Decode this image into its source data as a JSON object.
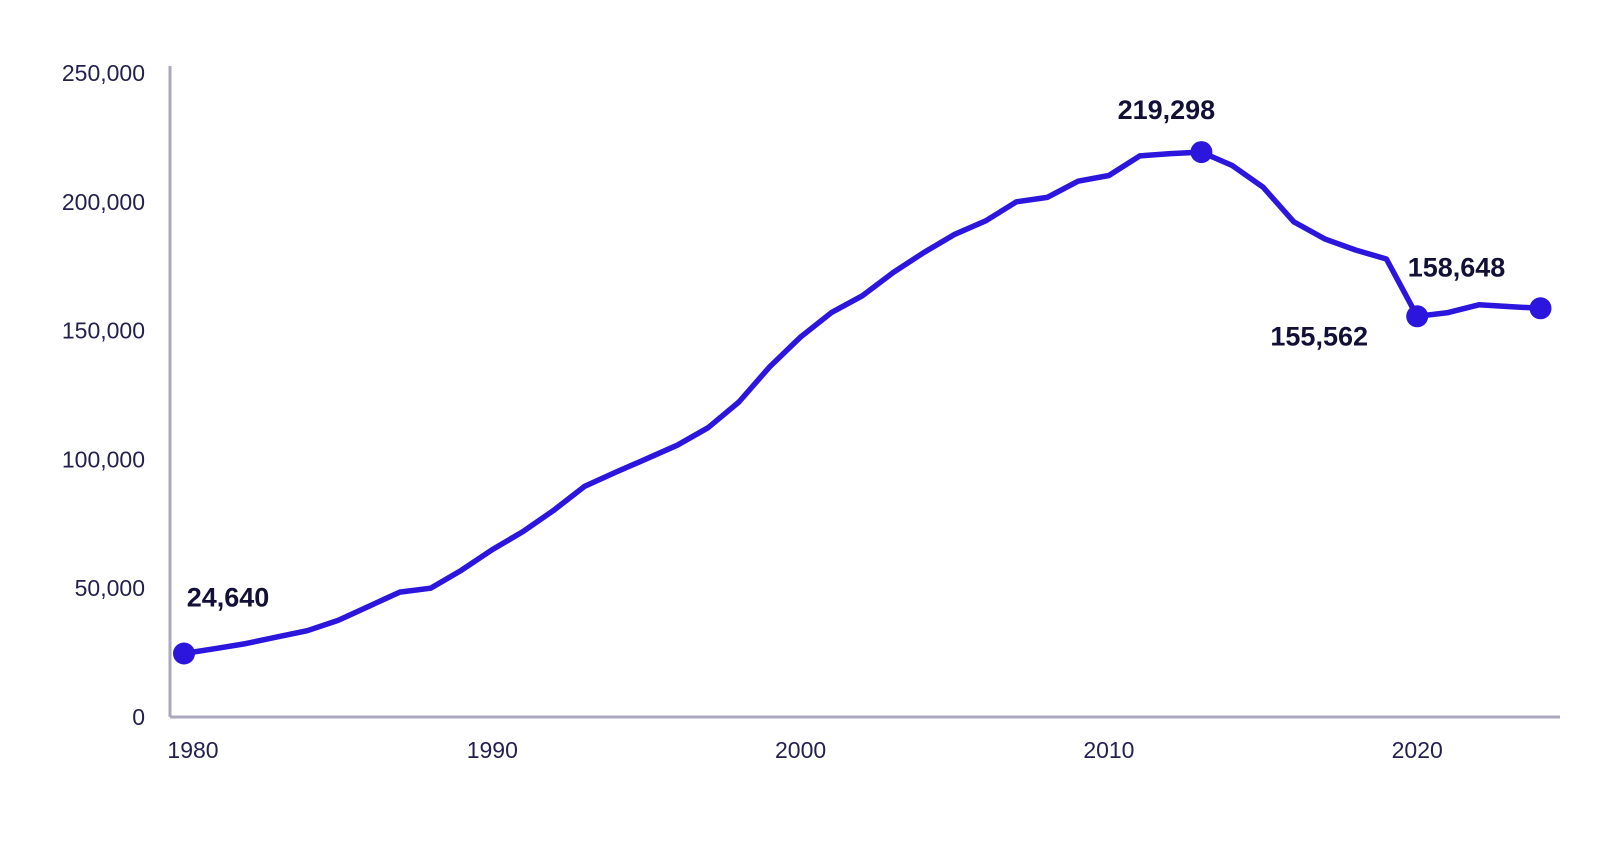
{
  "chart_data": {
    "type": "line",
    "title": "",
    "xlabel": "",
    "ylabel": "",
    "grid": false,
    "legend": false,
    "background_color": "#ffffff",
    "line_color": "#2c15dd",
    "marker_color": "#2c15dd",
    "axis_color": "#aba8bd",
    "tick_text_color": "#231f4f",
    "annotation_text_color": "#131038",
    "xlim": [
      1980,
      2024.7
    ],
    "ylim": [
      0,
      250000
    ],
    "x": [
      1980,
      1981,
      1982,
      1983,
      1984,
      1985,
      1986,
      1987,
      1988,
      1989,
      1990,
      1991,
      1992,
      1993,
      1994,
      1995,
      1996,
      1997,
      1998,
      1999,
      2000,
      2001,
      2002,
      2003,
      2004,
      2005,
      2006,
      2007,
      2008,
      2009,
      2010,
      2011,
      2012,
      2013,
      2014,
      2015,
      2016,
      2017,
      2018,
      2019,
      2020,
      2021,
      2022,
      2023,
      2024
    ],
    "values": [
      24640,
      26500,
      28500,
      31000,
      33500,
      37500,
      43000,
      48500,
      50000,
      57000,
      65000,
      72000,
      80300,
      89600,
      95000,
      100250,
      105500,
      112300,
      122300,
      136000,
      147500,
      157000,
      163500,
      172500,
      180300,
      187400,
      192600,
      200000,
      201700,
      208000,
      210200,
      217800,
      218700,
      219298,
      214100,
      205700,
      192200,
      185600,
      181300,
      177800,
      155562,
      157000,
      160000,
      159300,
      158648
    ],
    "y_ticks": [
      {
        "value": 0,
        "label": "0"
      },
      {
        "value": 50000,
        "label": "50,000"
      },
      {
        "value": 100000,
        "label": "100,000"
      },
      {
        "value": 150000,
        "label": "150,000"
      },
      {
        "value": 200000,
        "label": "200,000"
      },
      {
        "value": 250000,
        "label": "250,000"
      }
    ],
    "x_ticks": [
      {
        "value": 1980,
        "label": "1980"
      },
      {
        "value": 1990,
        "label": "1990"
      },
      {
        "value": 2000,
        "label": "2000"
      },
      {
        "value": 2010,
        "label": "2010"
      },
      {
        "value": 2020,
        "label": "2020"
      }
    ],
    "annotated_points": [
      {
        "year": 1980,
        "value": 24640,
        "label": "24,640",
        "placement": "above-right"
      },
      {
        "year": 2013,
        "value": 219298,
        "label": "219,298",
        "placement": "above"
      },
      {
        "year": 2020,
        "value": 155562,
        "label": "155,562",
        "placement": "below-left"
      },
      {
        "year": 2024,
        "value": 158648,
        "label": "158,648",
        "placement": "above-left"
      }
    ]
  }
}
